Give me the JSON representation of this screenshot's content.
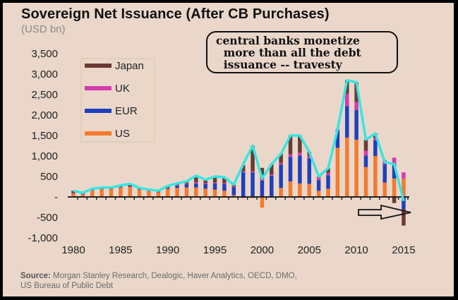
{
  "chart_data": {
    "type": "bar",
    "title": "Sovereign Net Issuance (After CB Purchases)",
    "subtitle": "(USD bn)",
    "xlabel": "",
    "ylabel": "USD bn",
    "ylim": [
      -1000,
      3500
    ],
    "yticks": [
      3500,
      3000,
      2500,
      2000,
      1500,
      1000,
      500,
      0,
      -500,
      -1000
    ],
    "ytick_labels": [
      "3,500",
      "3,000",
      "2,500",
      "2,000",
      "1,500",
      "1,000",
      "500",
      "-",
      "-500",
      "-1,000"
    ],
    "xticks": [
      1980,
      1985,
      1990,
      1995,
      2000,
      2005,
      2010,
      2015
    ],
    "xtick_labels": [
      "1980",
      "1985",
      "1990",
      "1995",
      "2000",
      "2005",
      "2010",
      "2015"
    ],
    "stacked": true,
    "legend_position": "top-left",
    "categories": [
      1980,
      1981,
      1982,
      1983,
      1984,
      1985,
      1986,
      1987,
      1988,
      1989,
      1990,
      1991,
      1992,
      1993,
      1994,
      1995,
      1996,
      1997,
      1998,
      1999,
      2000,
      2001,
      2002,
      2003,
      2004,
      2005,
      2006,
      2007,
      2008,
      2009,
      2010,
      2011,
      2012,
      2013,
      2014,
      2015
    ],
    "series": [
      {
        "name": "US",
        "color": "#f47a30",
        "values": [
          80,
          60,
          160,
          190,
          190,
          230,
          240,
          170,
          140,
          110,
          200,
          220,
          230,
          230,
          200,
          180,
          150,
          40,
          -30,
          -30,
          -260,
          -10,
          220,
          380,
          330,
          320,
          150,
          200,
          1200,
          1450,
          1400,
          730,
          1000,
          350,
          450,
          450
        ]
      },
      {
        "name": "EUR",
        "color": "#1f3fbf",
        "values": [
          0,
          0,
          0,
          0,
          0,
          0,
          0,
          0,
          0,
          0,
          30,
          60,
          80,
          100,
          120,
          150,
          170,
          200,
          600,
          600,
          400,
          520,
          570,
          600,
          680,
          620,
          260,
          330,
          420,
          770,
          720,
          280,
          380,
          450,
          350,
          -300
        ]
      },
      {
        "name": "UK",
        "color": "#d63ab0",
        "values": [
          10,
          5,
          5,
          5,
          5,
          5,
          10,
          10,
          10,
          5,
          5,
          10,
          20,
          30,
          20,
          20,
          20,
          20,
          30,
          30,
          30,
          30,
          40,
          60,
          70,
          60,
          70,
          60,
          40,
          300,
          200,
          120,
          60,
          100,
          160,
          150
        ]
      },
      {
        "name": "Japan",
        "color": "#6b3a35",
        "values": [
          60,
          35,
          35,
          35,
          35,
          45,
          70,
          40,
          30,
          35,
          35,
          40,
          50,
          160,
          80,
          150,
          140,
          40,
          150,
          620,
          280,
          250,
          220,
          460,
          420,
          100,
          20,
          110,
          0,
          330,
          480,
          270,
          110,
          0,
          -150,
          -400
        ]
      }
    ],
    "total_line": {
      "name": "Total",
      "color": "#36e6e0",
      "values": [
        150,
        100,
        200,
        230,
        230,
        280,
        320,
        220,
        180,
        150,
        270,
        330,
        380,
        520,
        420,
        500,
        480,
        300,
        800,
        1250,
        450,
        800,
        1050,
        1500,
        1500,
        1100,
        500,
        700,
        1650,
        2850,
        2800,
        1400,
        1550,
        850,
        800,
        -100
      ]
    },
    "annotations": [
      {
        "text": "central banks monetize more than all the debt issuance -- travesty",
        "type": "callout"
      },
      {
        "text": "",
        "type": "arrow",
        "points_to": 2015
      }
    ]
  },
  "callout_lines": [
    "central banks monetize",
    "  more than all the debt",
    "  issuance -- travesty"
  ],
  "source_label": "Source:",
  "source_text": " Morgan Stanley Research, Dealogic, Haver Analytics, OECD, DMO,",
  "source_text2": "US Bureau of Public Debt"
}
